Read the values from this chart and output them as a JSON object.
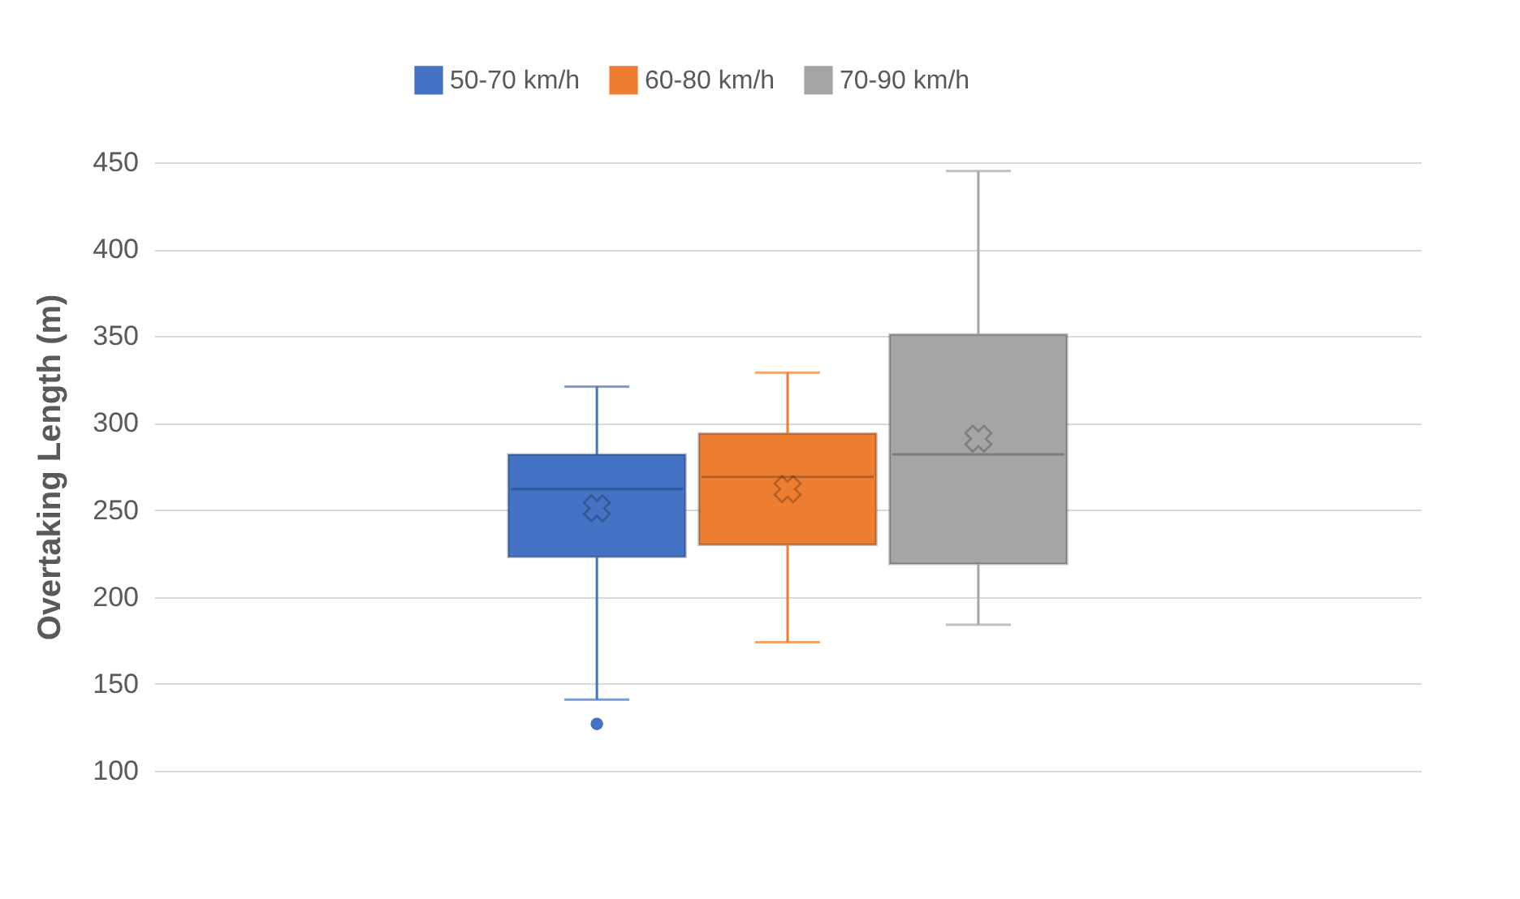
{
  "chart_data": {
    "type": "box",
    "ylabel": "Overtaking Length (m)",
    "categories": [
      null
    ],
    "series": [
      {
        "name": "50-70 km/h",
        "color": "#4472c4",
        "boxes": [
          {
            "low": 141,
            "q1": 223,
            "median": 262,
            "q3": 282,
            "high": 321,
            "mean": 251,
            "outliers": [
              127
            ]
          }
        ]
      },
      {
        "name": "60-80 km/h",
        "color": "#ed7d31",
        "boxes": [
          {
            "low": 174,
            "q1": 230,
            "median": 269,
            "q3": 294,
            "high": 329,
            "mean": 262
          }
        ]
      },
      {
        "name": "70-90 km/h",
        "color": "#a5a5a5",
        "boxes": [
          {
            "low": 184,
            "q1": 219,
            "median": 282,
            "q3": 351,
            "high": 445,
            "mean": 291
          }
        ]
      }
    ],
    "ylim": [
      100,
      450
    ],
    "yticks": [
      100,
      150,
      200,
      250,
      300,
      350,
      400,
      450
    ],
    "grid": "y",
    "legend": "top",
    "tick_labels": "y"
  }
}
